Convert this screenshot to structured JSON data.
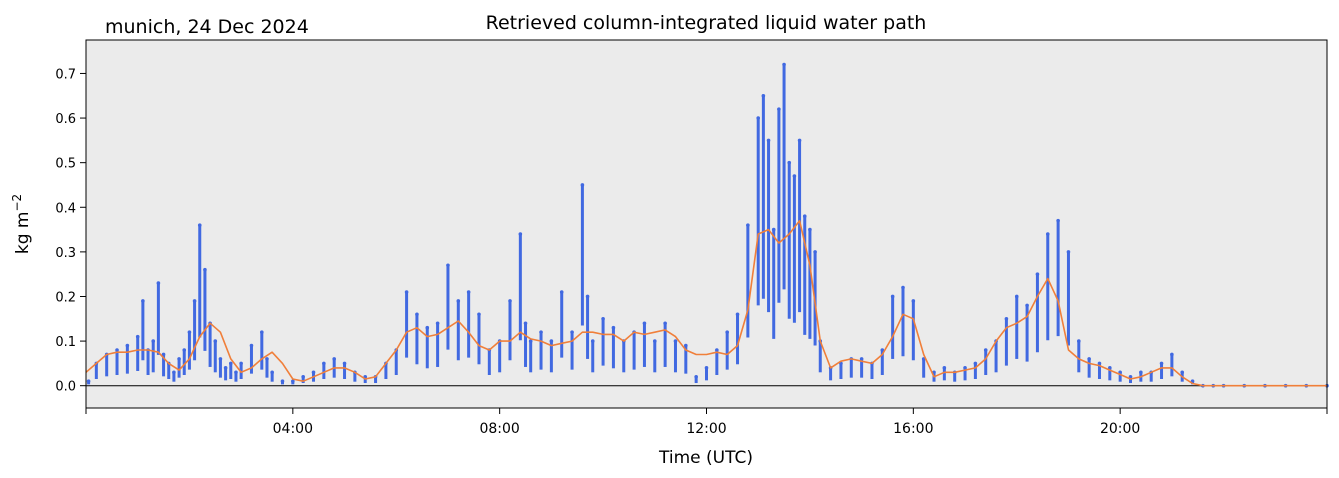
{
  "chart_data": {
    "type": "scatter",
    "location_label": "munich, 24 Dec 2024",
    "title": "Retrieved column-integrated liquid water path",
    "xlabel": "Time (UTC)",
    "ylabel_base": "kg m",
    "ylabel_exp": "−2",
    "xlim_hours": [
      0,
      24
    ],
    "ylim": [
      -0.05,
      0.775
    ],
    "x_ticks": [
      {
        "hour": 0,
        "label": ""
      },
      {
        "hour": 4,
        "label": "04:00"
      },
      {
        "hour": 8,
        "label": "08:00"
      },
      {
        "hour": 12,
        "label": "12:00"
      },
      {
        "hour": 16,
        "label": "16:00"
      },
      {
        "hour": 20,
        "label": "20:00"
      },
      {
        "hour": 24,
        "label": ""
      }
    ],
    "y_ticks": [
      {
        "value": 0.0,
        "label": "0.0"
      },
      {
        "value": 0.1,
        "label": "0.1"
      },
      {
        "value": 0.2,
        "label": "0.2"
      },
      {
        "value": 0.3,
        "label": "0.3"
      },
      {
        "value": 0.4,
        "label": "0.4"
      },
      {
        "value": 0.5,
        "label": "0.5"
      },
      {
        "value": 0.6,
        "label": "0.6"
      },
      {
        "value": 0.7,
        "label": "0.7"
      }
    ],
    "zero_line": 0.0,
    "grid": false,
    "background_color": "#ebebeb",
    "series": [
      {
        "kind": "scatter",
        "color": "#4169e1",
        "x": [
          0.05,
          0.2,
          0.4,
          0.6,
          0.8,
          1.0,
          1.1,
          1.2,
          1.3,
          1.4,
          1.5,
          1.6,
          1.7,
          1.8,
          1.9,
          2.0,
          2.1,
          2.2,
          2.3,
          2.4,
          2.5,
          2.6,
          2.7,
          2.8,
          2.9,
          3.0,
          3.2,
          3.4,
          3.5,
          3.6,
          3.8,
          4.0,
          4.2,
          4.4,
          4.6,
          4.8,
          5.0,
          5.2,
          5.4,
          5.6,
          5.8,
          6.0,
          6.2,
          6.4,
          6.6,
          6.8,
          7.0,
          7.2,
          7.4,
          7.6,
          7.8,
          8.0,
          8.2,
          8.4,
          8.5,
          8.6,
          8.8,
          9.0,
          9.2,
          9.4,
          9.6,
          9.7,
          9.8,
          10.0,
          10.2,
          10.4,
          10.6,
          10.8,
          11.0,
          11.2,
          11.4,
          11.6,
          11.8,
          12.0,
          12.2,
          12.4,
          12.6,
          12.8,
          13.0,
          13.1,
          13.2,
          13.3,
          13.4,
          13.5,
          13.6,
          13.7,
          13.8,
          13.9,
          14.0,
          14.1,
          14.2,
          14.4,
          14.6,
          14.8,
          15.0,
          15.2,
          15.4,
          15.6,
          15.8,
          16.0,
          16.2,
          16.4,
          16.6,
          16.8,
          17.0,
          17.2,
          17.4,
          17.6,
          17.8,
          18.0,
          18.2,
          18.4,
          18.6,
          18.8,
          19.0,
          19.2,
          19.4,
          19.6,
          19.8,
          20.0,
          20.2,
          20.4,
          20.6,
          20.8,
          21.0,
          21.2,
          21.4,
          21.6,
          21.8,
          22.0,
          22.4,
          22.8,
          23.2,
          23.6,
          24.0
        ],
        "y": [
          0.01,
          0.05,
          0.07,
          0.08,
          0.09,
          0.11,
          0.19,
          0.08,
          0.1,
          0.23,
          0.07,
          0.05,
          0.03,
          0.06,
          0.08,
          0.12,
          0.19,
          0.36,
          0.26,
          0.14,
          0.1,
          0.06,
          0.04,
          0.05,
          0.03,
          0.05,
          0.09,
          0.12,
          0.06,
          0.03,
          0.01,
          0.01,
          0.02,
          0.03,
          0.05,
          0.06,
          0.05,
          0.03,
          0.02,
          0.02,
          0.05,
          0.08,
          0.21,
          0.16,
          0.13,
          0.14,
          0.27,
          0.19,
          0.21,
          0.16,
          0.08,
          0.1,
          0.19,
          0.34,
          0.14,
          0.1,
          0.12,
          0.1,
          0.21,
          0.12,
          0.45,
          0.2,
          0.1,
          0.15,
          0.13,
          0.1,
          0.12,
          0.14,
          0.1,
          0.14,
          0.1,
          0.09,
          0.02,
          0.04,
          0.08,
          0.12,
          0.16,
          0.36,
          0.6,
          0.65,
          0.55,
          0.35,
          0.62,
          0.72,
          0.5,
          0.47,
          0.55,
          0.38,
          0.35,
          0.3,
          0.1,
          0.04,
          0.05,
          0.06,
          0.06,
          0.05,
          0.08,
          0.2,
          0.22,
          0.19,
          0.06,
          0.03,
          0.04,
          0.03,
          0.04,
          0.05,
          0.08,
          0.1,
          0.15,
          0.2,
          0.18,
          0.25,
          0.34,
          0.37,
          0.3,
          0.1,
          0.06,
          0.05,
          0.04,
          0.03,
          0.02,
          0.03,
          0.03,
          0.05,
          0.07,
          0.03,
          0.01,
          0.0,
          0.0,
          0.0,
          0.0,
          0.0,
          0.0,
          0.0,
          0.0
        ]
      },
      {
        "kind": "line",
        "color": "#f07f3a",
        "x": [
          0.0,
          0.2,
          0.4,
          0.6,
          0.8,
          1.0,
          1.2,
          1.4,
          1.6,
          1.8,
          2.0,
          2.2,
          2.4,
          2.6,
          2.8,
          3.0,
          3.2,
          3.4,
          3.6,
          3.8,
          4.0,
          4.2,
          4.4,
          4.6,
          4.8,
          5.0,
          5.2,
          5.4,
          5.6,
          5.8,
          6.0,
          6.2,
          6.4,
          6.6,
          6.8,
          7.0,
          7.2,
          7.4,
          7.6,
          7.8,
          8.0,
          8.2,
          8.4,
          8.6,
          8.8,
          9.0,
          9.2,
          9.4,
          9.6,
          9.8,
          10.0,
          10.2,
          10.4,
          10.6,
          10.8,
          11.0,
          11.2,
          11.4,
          11.6,
          11.8,
          12.0,
          12.2,
          12.4,
          12.6,
          12.8,
          13.0,
          13.2,
          13.4,
          13.6,
          13.8,
          14.0,
          14.2,
          14.4,
          14.6,
          14.8,
          15.0,
          15.2,
          15.4,
          15.6,
          15.8,
          16.0,
          16.2,
          16.4,
          16.6,
          16.8,
          17.0,
          17.2,
          17.4,
          17.6,
          17.8,
          18.0,
          18.2,
          18.4,
          18.6,
          18.8,
          19.0,
          19.2,
          19.4,
          19.6,
          19.8,
          20.0,
          20.2,
          20.4,
          20.6,
          20.8,
          21.0,
          21.2,
          21.4,
          21.6,
          21.8,
          22.0,
          22.4,
          22.8,
          23.2,
          23.6,
          24.0
        ],
        "y": [
          0.03,
          0.05,
          0.07,
          0.075,
          0.075,
          0.08,
          0.08,
          0.075,
          0.05,
          0.035,
          0.06,
          0.11,
          0.14,
          0.12,
          0.06,
          0.03,
          0.04,
          0.06,
          0.075,
          0.05,
          0.015,
          0.01,
          0.02,
          0.03,
          0.04,
          0.04,
          0.03,
          0.015,
          0.02,
          0.05,
          0.08,
          0.12,
          0.13,
          0.11,
          0.115,
          0.13,
          0.145,
          0.12,
          0.09,
          0.08,
          0.1,
          0.1,
          0.12,
          0.105,
          0.1,
          0.09,
          0.095,
          0.1,
          0.12,
          0.12,
          0.115,
          0.115,
          0.1,
          0.12,
          0.115,
          0.12,
          0.125,
          0.11,
          0.08,
          0.07,
          0.07,
          0.075,
          0.07,
          0.09,
          0.17,
          0.34,
          0.35,
          0.32,
          0.34,
          0.37,
          0.27,
          0.1,
          0.04,
          0.055,
          0.06,
          0.055,
          0.05,
          0.07,
          0.11,
          0.16,
          0.15,
          0.07,
          0.02,
          0.03,
          0.03,
          0.035,
          0.04,
          0.06,
          0.1,
          0.13,
          0.14,
          0.155,
          0.2,
          0.24,
          0.19,
          0.08,
          0.06,
          0.05,
          0.045,
          0.035,
          0.025,
          0.015,
          0.02,
          0.03,
          0.04,
          0.04,
          0.02,
          0.005,
          0.0,
          0.0,
          0.0,
          0.0,
          0.0,
          0.0,
          0.0,
          0.0
        ]
      }
    ]
  }
}
